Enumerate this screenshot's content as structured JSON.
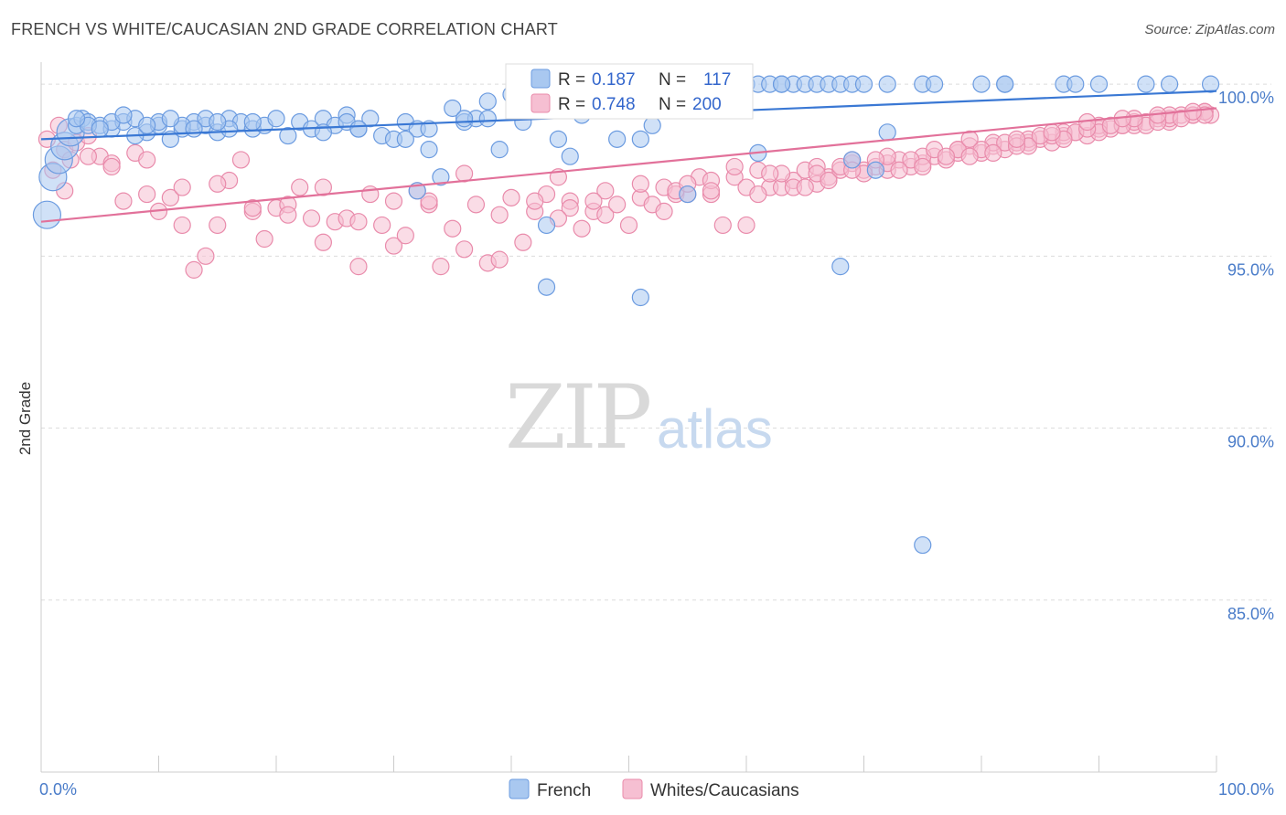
{
  "title": "FRENCH VS WHITE/CAUCASIAN 2ND GRADE CORRELATION CHART",
  "source": "Source: ZipAtlas.com",
  "watermark": {
    "zip": "ZIP",
    "atlas": "atlas"
  },
  "chart_data": {
    "type": "scatter",
    "ylabel": "2nd Grade",
    "xlim": [
      0,
      100
    ],
    "ylim": [
      80.0,
      100.8
    ],
    "yticks": [
      {
        "v": 100,
        "label": "100.0%"
      },
      {
        "v": 95,
        "label": "95.0%"
      },
      {
        "v": 90,
        "label": "90.0%"
      },
      {
        "v": 85,
        "label": "85.0%"
      }
    ],
    "xticks": [
      {
        "v": 0,
        "label": "0.0%"
      },
      {
        "v": 100,
        "label": "100.0%"
      }
    ],
    "grid": true,
    "legend_top": {
      "rows": [
        {
          "series": "French",
          "r_label": "R = ",
          "r": "0.187",
          "n_label": "N = ",
          "n": "117"
        },
        {
          "series": "Whites/Caucasians",
          "r_label": "R = ",
          "r": "0.748",
          "n_label": "N = ",
          "n": "200"
        }
      ]
    },
    "series": [
      {
        "name": "French",
        "color": "#6b9be0",
        "fill": "#a9c8f0",
        "trend": [
          [
            0,
            98.4
          ],
          [
            100,
            99.8
          ]
        ],
        "points": [
          [
            0.5,
            96.2
          ],
          [
            1,
            97.3
          ],
          [
            1.5,
            97.8
          ],
          [
            2,
            98.2
          ],
          [
            2.5,
            98.6
          ],
          [
            3,
            98.8
          ],
          [
            3.5,
            99.0
          ],
          [
            4,
            98.9
          ],
          [
            5,
            98.8
          ],
          [
            6,
            98.7
          ],
          [
            7,
            98.9
          ],
          [
            8,
            99.0
          ],
          [
            9,
            98.6
          ],
          [
            10,
            98.8
          ],
          [
            11,
            98.4
          ],
          [
            12,
            98.7
          ],
          [
            13,
            98.9
          ],
          [
            14,
            98.8
          ],
          [
            15,
            98.6
          ],
          [
            16,
            99.0
          ],
          [
            17,
            98.9
          ],
          [
            18,
            98.7
          ],
          [
            19,
            98.8
          ],
          [
            20,
            99.0
          ],
          [
            21,
            98.5
          ],
          [
            22,
            98.9
          ],
          [
            23,
            98.7
          ],
          [
            24,
            99.0
          ],
          [
            25,
            98.8
          ],
          [
            26,
            99.1
          ],
          [
            27,
            98.7
          ],
          [
            28,
            99.0
          ],
          [
            29,
            98.5
          ],
          [
            30,
            98.4
          ],
          [
            31,
            98.9
          ],
          [
            32,
            98.7
          ],
          [
            33,
            98.1
          ],
          [
            34,
            97.3
          ],
          [
            35,
            99.3
          ],
          [
            36,
            98.9
          ],
          [
            37,
            99.0
          ],
          [
            38,
            99.5
          ],
          [
            39,
            98.1
          ],
          [
            40,
            99.7
          ],
          [
            41,
            98.9
          ],
          [
            42,
            100.0
          ],
          [
            43,
            99.8
          ],
          [
            44,
            98.4
          ],
          [
            45,
            99.7
          ],
          [
            46,
            99.1
          ],
          [
            47,
            99.8
          ],
          [
            48,
            100.0
          ],
          [
            49,
            99.5
          ],
          [
            50,
            99.8
          ],
          [
            51,
            98.4
          ],
          [
            52,
            98.8
          ],
          [
            53,
            100.0
          ],
          [
            54,
            100.0
          ],
          [
            55,
            100.0
          ],
          [
            56,
            99.8
          ],
          [
            57,
            100.0
          ],
          [
            58,
            100.0
          ],
          [
            59,
            100.0
          ],
          [
            60,
            100.0
          ],
          [
            61,
            100.0
          ],
          [
            62,
            100.0
          ],
          [
            63,
            100.0
          ],
          [
            64,
            100.0
          ],
          [
            65,
            100.0
          ],
          [
            66,
            100.0
          ],
          [
            67,
            100.0
          ],
          [
            68,
            100.0
          ],
          [
            69,
            100.0
          ],
          [
            70,
            100.0
          ],
          [
            72,
            100.0
          ],
          [
            75,
            100.0
          ],
          [
            76,
            100.0
          ],
          [
            80,
            100.0
          ],
          [
            82,
            100.0
          ],
          [
            87,
            100.0
          ],
          [
            88,
            100.0
          ],
          [
            90,
            100.0
          ],
          [
            94,
            100.0
          ],
          [
            96,
            100.0
          ],
          [
            99.5,
            100.0
          ],
          [
            38,
            99.0
          ],
          [
            31,
            98.4
          ],
          [
            26,
            98.9
          ],
          [
            14,
            99.0
          ],
          [
            10,
            98.9
          ],
          [
            36,
            99.0
          ],
          [
            33,
            98.7
          ],
          [
            32,
            96.9
          ],
          [
            43,
            94.1
          ],
          [
            45,
            97.9
          ],
          [
            51,
            93.8
          ],
          [
            55,
            96.8
          ],
          [
            49,
            98.4
          ],
          [
            61,
            98.0
          ],
          [
            63,
            100.0
          ],
          [
            69,
            97.8
          ],
          [
            68,
            94.7
          ],
          [
            71,
            97.5
          ],
          [
            72,
            98.6
          ],
          [
            75,
            86.6
          ],
          [
            82,
            100.0
          ],
          [
            27,
            98.7
          ],
          [
            24,
            98.6
          ],
          [
            18,
            98.9
          ],
          [
            16,
            98.7
          ],
          [
            12,
            98.8
          ],
          [
            8,
            98.5
          ],
          [
            6,
            98.9
          ],
          [
            4,
            98.8
          ],
          [
            3,
            99.0
          ],
          [
            5,
            98.7
          ],
          [
            7,
            99.1
          ],
          [
            9,
            98.8
          ],
          [
            11,
            99.0
          ],
          [
            13,
            98.7
          ],
          [
            15,
            98.9
          ],
          [
            43,
            95.9
          ]
        ]
      },
      {
        "name": "Whites/Caucasians",
        "color": "#e98bab",
        "fill": "#f6bfd2",
        "trend": [
          [
            0,
            96.0
          ],
          [
            100,
            99.3
          ]
        ],
        "points": [
          [
            0.5,
            98.4
          ],
          [
            1,
            97.5
          ],
          [
            1.5,
            98.8
          ],
          [
            2,
            98.1
          ],
          [
            2.5,
            97.8
          ],
          [
            3,
            98.3
          ],
          [
            4,
            98.5
          ],
          [
            5,
            97.9
          ],
          [
            6,
            97.7
          ],
          [
            7,
            96.6
          ],
          [
            8,
            98.0
          ],
          [
            9,
            97.8
          ],
          [
            10,
            96.3
          ],
          [
            11,
            96.7
          ],
          [
            12,
            97.0
          ],
          [
            13,
            94.6
          ],
          [
            14,
            95.0
          ],
          [
            15,
            95.9
          ],
          [
            16,
            97.2
          ],
          [
            17,
            97.8
          ],
          [
            18,
            96.3
          ],
          [
            19,
            95.5
          ],
          [
            20,
            96.4
          ],
          [
            21,
            96.5
          ],
          [
            22,
            97.0
          ],
          [
            23,
            96.1
          ],
          [
            24,
            97.0
          ],
          [
            25,
            96.0
          ],
          [
            26,
            96.1
          ],
          [
            27,
            94.7
          ],
          [
            28,
            96.8
          ],
          [
            29,
            95.9
          ],
          [
            30,
            95.3
          ],
          [
            31,
            95.6
          ],
          [
            32,
            96.9
          ],
          [
            33,
            96.5
          ],
          [
            34,
            94.7
          ],
          [
            35,
            95.8
          ],
          [
            36,
            95.2
          ],
          [
            37,
            96.5
          ],
          [
            38,
            94.8
          ],
          [
            39,
            94.9
          ],
          [
            40,
            96.7
          ],
          [
            41,
            95.4
          ],
          [
            42,
            96.3
          ],
          [
            43,
            96.8
          ],
          [
            44,
            97.3
          ],
          [
            45,
            96.6
          ],
          [
            46,
            95.8
          ],
          [
            47,
            96.3
          ],
          [
            48,
            96.2
          ],
          [
            49,
            96.5
          ],
          [
            50,
            95.9
          ],
          [
            51,
            96.7
          ],
          [
            52,
            96.5
          ],
          [
            53,
            97.0
          ],
          [
            54,
            96.8
          ],
          [
            55,
            96.8
          ],
          [
            56,
            97.3
          ],
          [
            57,
            96.8
          ],
          [
            58,
            95.9
          ],
          [
            59,
            97.3
          ],
          [
            60,
            95.9
          ],
          [
            61,
            97.5
          ],
          [
            62,
            97.0
          ],
          [
            63,
            97.0
          ],
          [
            64,
            97.2
          ],
          [
            65,
            97.5
          ],
          [
            66,
            97.1
          ],
          [
            67,
            97.3
          ],
          [
            68,
            97.5
          ],
          [
            69,
            97.7
          ],
          [
            70,
            97.5
          ],
          [
            71,
            97.6
          ],
          [
            72,
            97.5
          ],
          [
            73,
            97.8
          ],
          [
            74,
            97.6
          ],
          [
            75,
            97.7
          ],
          [
            76,
            97.9
          ],
          [
            77,
            97.8
          ],
          [
            78,
            98.0
          ],
          [
            79,
            98.2
          ],
          [
            80,
            98.0
          ],
          [
            81,
            98.2
          ],
          [
            82,
            98.1
          ],
          [
            83,
            98.3
          ],
          [
            84,
            98.3
          ],
          [
            85,
            98.4
          ],
          [
            86,
            98.3
          ],
          [
            87,
            98.5
          ],
          [
            88,
            98.6
          ],
          [
            89,
            98.5
          ],
          [
            90,
            98.7
          ],
          [
            91,
            98.7
          ],
          [
            92,
            98.8
          ],
          [
            93,
            98.8
          ],
          [
            94,
            98.9
          ],
          [
            95,
            99.0
          ],
          [
            96,
            98.9
          ],
          [
            97,
            99.1
          ],
          [
            98,
            99.1
          ],
          [
            99,
            99.2
          ],
          [
            99.5,
            99.1
          ],
          [
            2,
            96.9
          ],
          [
            4,
            97.9
          ],
          [
            6,
            97.6
          ],
          [
            9,
            96.8
          ],
          [
            12,
            95.9
          ],
          [
            15,
            97.1
          ],
          [
            18,
            96.4
          ],
          [
            21,
            96.2
          ],
          [
            24,
            95.4
          ],
          [
            27,
            96.0
          ],
          [
            30,
            96.6
          ],
          [
            33,
            96.6
          ],
          [
            36,
            97.4
          ],
          [
            39,
            96.2
          ],
          [
            42,
            96.6
          ],
          [
            45,
            96.4
          ],
          [
            48,
            96.9
          ],
          [
            51,
            97.1
          ],
          [
            54,
            96.9
          ],
          [
            57,
            97.2
          ],
          [
            60,
            97.0
          ],
          [
            63,
            97.4
          ],
          [
            66,
            97.6
          ],
          [
            69,
            97.8
          ],
          [
            72,
            97.7
          ],
          [
            75,
            97.9
          ],
          [
            78,
            98.1
          ],
          [
            81,
            98.3
          ],
          [
            84,
            98.4
          ],
          [
            87,
            98.6
          ],
          [
            90,
            98.8
          ],
          [
            93,
            98.9
          ],
          [
            96,
            99.0
          ],
          [
            99,
            99.2
          ],
          [
            62,
            97.4
          ],
          [
            64,
            97.0
          ],
          [
            66,
            97.4
          ],
          [
            68,
            97.6
          ],
          [
            70,
            97.4
          ],
          [
            72,
            97.9
          ],
          [
            74,
            97.8
          ],
          [
            76,
            98.1
          ],
          [
            78,
            98.1
          ],
          [
            80,
            98.1
          ],
          [
            82,
            98.3
          ],
          [
            84,
            98.2
          ],
          [
            86,
            98.5
          ],
          [
            88,
            98.6
          ],
          [
            90,
            98.6
          ],
          [
            92,
            98.8
          ],
          [
            94,
            98.8
          ],
          [
            96,
            99.1
          ],
          [
            98,
            99.1
          ],
          [
            65,
            97.0
          ],
          [
            67,
            97.2
          ],
          [
            69,
            97.5
          ],
          [
            71,
            97.8
          ],
          [
            73,
            97.5
          ],
          [
            75,
            97.6
          ],
          [
            77,
            97.9
          ],
          [
            79,
            97.9
          ],
          [
            81,
            98.0
          ],
          [
            83,
            98.2
          ],
          [
            85,
            98.5
          ],
          [
            87,
            98.4
          ],
          [
            89,
            98.7
          ],
          [
            91,
            98.8
          ],
          [
            93,
            99.0
          ],
          [
            95,
            98.9
          ],
          [
            97,
            99.0
          ],
          [
            99,
            99.1
          ],
          [
            79,
            98.4
          ],
          [
            83,
            98.4
          ],
          [
            86,
            98.6
          ],
          [
            89,
            98.9
          ],
          [
            92,
            99.0
          ],
          [
            95,
            99.1
          ],
          [
            98,
            99.2
          ],
          [
            55,
            97.1
          ],
          [
            57,
            96.9
          ],
          [
            59,
            97.6
          ],
          [
            61,
            96.8
          ],
          [
            53,
            96.3
          ],
          [
            47,
            96.6
          ],
          [
            44,
            96.1
          ]
        ]
      }
    ]
  },
  "bottom_legend": [
    {
      "label": "French"
    },
    {
      "label": "Whites/Caucasians"
    }
  ]
}
